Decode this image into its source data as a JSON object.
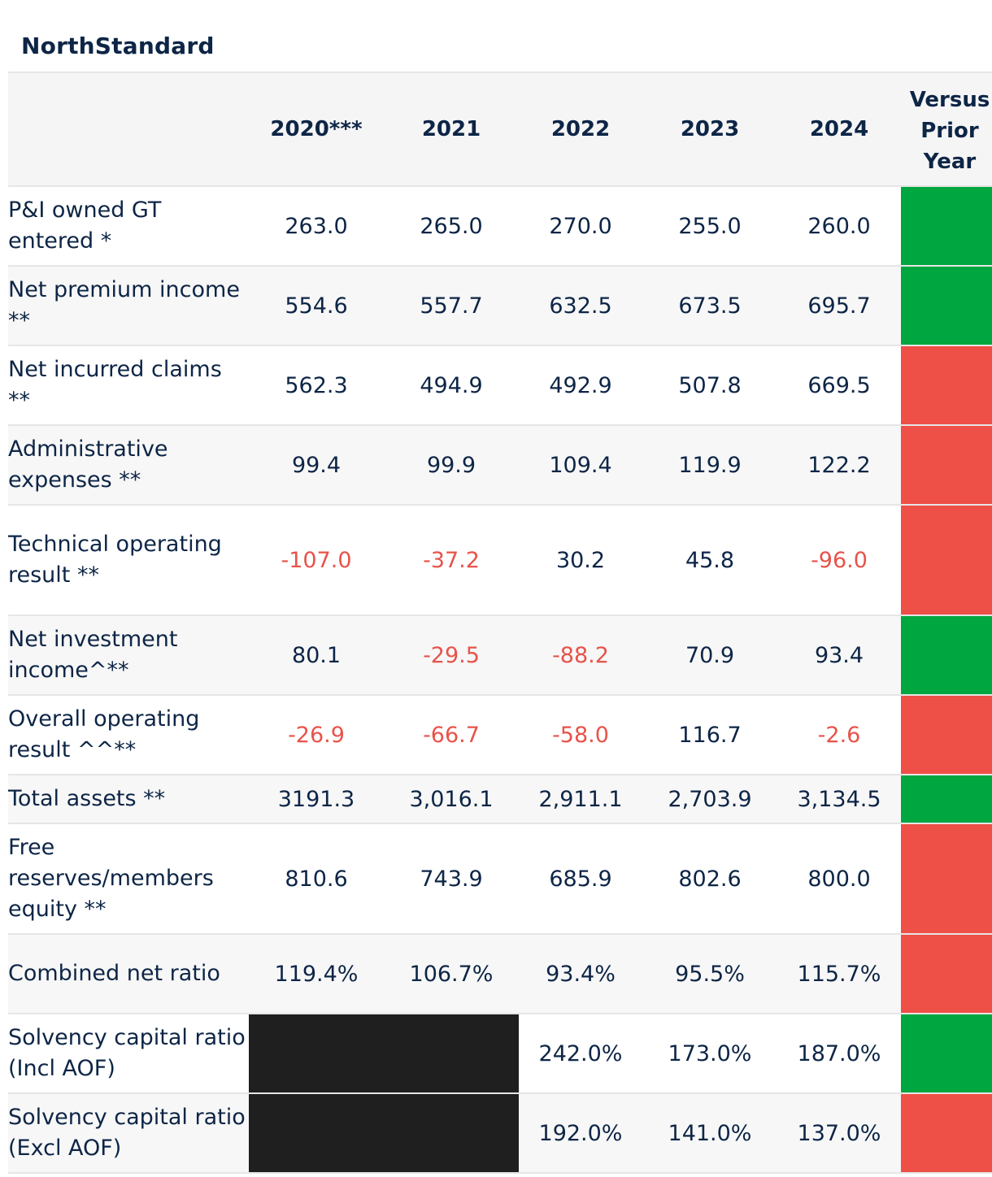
{
  "title": "NorthStandard",
  "header": {
    "label": "",
    "years": [
      "2020***",
      "2021",
      "2022",
      "2023",
      "2024"
    ],
    "versus": [
      "Versus",
      "Prior",
      "Year"
    ]
  },
  "colors": {
    "up": "#00a63f",
    "down": "#ee4f46",
    "negative_text": "#e8534a",
    "redacted": "#1f1f1f"
  },
  "rows": [
    {
      "label": "P&I owned GT entered *",
      "values": [
        "263.0",
        "265.0",
        "270.0",
        "255.0",
        "260.0"
      ],
      "trend": "up"
    },
    {
      "label": "Net premium income **",
      "values": [
        "554.6",
        "557.7",
        "632.5",
        "673.5",
        "695.7"
      ],
      "trend": "up"
    },
    {
      "label": "Net incurred claims **",
      "values": [
        "562.3",
        "494.9",
        "492.9",
        "507.8",
        "669.5"
      ],
      "trend": "down"
    },
    {
      "label": "Administrative expenses **",
      "values": [
        "99.4",
        "99.9",
        "109.4",
        "119.9",
        "122.2"
      ],
      "trend": "down"
    },
    {
      "label": "Technical operating result **",
      "values": [
        "-107.0",
        "-37.2",
        "30.2",
        "45.8",
        "-96.0"
      ],
      "trend": "down"
    },
    {
      "label": "Net investment income^**",
      "values": [
        "80.1",
        "-29.5",
        "-88.2",
        "70.9",
        "93.4"
      ],
      "trend": "up"
    },
    {
      "label": "Overall operating result ^^**",
      "values": [
        "-26.9",
        "-66.7",
        "-58.0",
        "116.7",
        "-2.6"
      ],
      "trend": "down"
    },
    {
      "label": "Total assets **",
      "values": [
        "3191.3",
        "3,016.1",
        "2,911.1",
        "2,703.9",
        "3,134.5"
      ],
      "trend": "up"
    },
    {
      "label": "Free reserves/members equity **",
      "values": [
        "810.6",
        "743.9",
        "685.9",
        "802.6",
        "800.0"
      ],
      "trend": "down"
    },
    {
      "label": "Combined net ratio",
      "values": [
        "119.4%",
        "106.7%",
        "93.4%",
        "95.5%",
        "115.7%"
      ],
      "trend": "down"
    },
    {
      "label": "Solvency capital ratio (Incl AOF)",
      "values": [
        null,
        null,
        "242.0%",
        "173.0%",
        "187.0%"
      ],
      "trend": "up"
    },
    {
      "label": "Solvency capital ratio (Excl AOF)",
      "values": [
        null,
        null,
        "192.0%",
        "141.0%",
        "137.0%"
      ],
      "trend": "down"
    }
  ]
}
